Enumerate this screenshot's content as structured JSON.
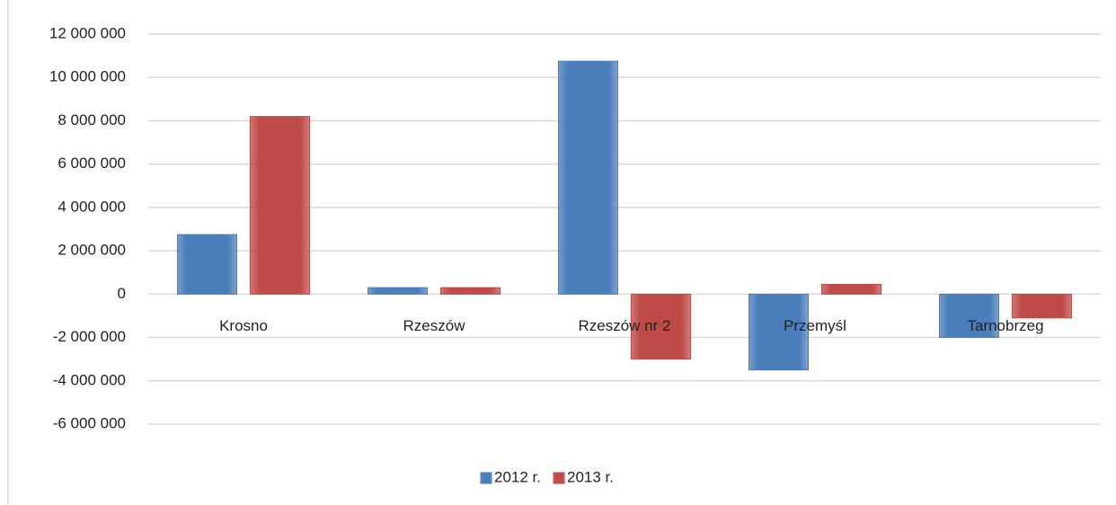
{
  "chart_data": {
    "type": "bar",
    "categories": [
      "Krosno",
      "Rzeszów",
      "Rzeszów nr 2",
      "Przemyśl",
      "Tarnobrzeg"
    ],
    "series": [
      {
        "name": "2012 r.",
        "color": "#4a7ebb",
        "values": [
          2750000,
          300000,
          10750000,
          -3500000,
          -2000000
        ]
      },
      {
        "name": "2013 r.",
        "color": "#be4b48",
        "values": [
          8200000,
          300000,
          -3000000,
          450000,
          -1100000
        ]
      }
    ],
    "ylim": [
      -6000000,
      12000000
    ],
    "yticks": [
      {
        "value": -6000000,
        "label": "-6 000 000"
      },
      {
        "value": -4000000,
        "label": "-4 000 000"
      },
      {
        "value": -2000000,
        "label": "-2 000 000"
      },
      0,
      {
        "value": 2000000,
        "label": "2 000 000"
      },
      {
        "value": 4000000,
        "label": "4 000 000"
      },
      {
        "value": 6000000,
        "label": "6 000 000"
      },
      {
        "value": 8000000,
        "label": "8 000 000"
      },
      {
        "value": 10000000,
        "label": "10 000 000"
      },
      {
        "value": 12000000,
        "label": "12 000 000"
      }
    ],
    "grid": true,
    "legend": "bottom"
  }
}
